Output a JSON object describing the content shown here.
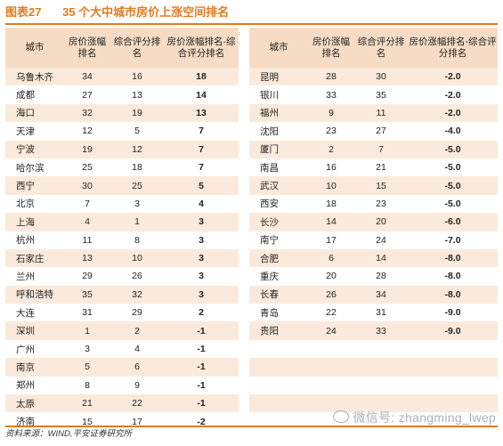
{
  "title": {
    "number": "图表27",
    "text": "35 个大中城市房价上涨空间排名"
  },
  "headers": [
    "城市",
    "房价涨幅排名",
    "综合评分排名",
    "房价涨幅排名-综合评分排名"
  ],
  "left_rows": [
    [
      "乌鲁木齐",
      "34",
      "16",
      "18"
    ],
    [
      "成都",
      "27",
      "13",
      "14"
    ],
    [
      "海口",
      "32",
      "19",
      "13"
    ],
    [
      "天津",
      "12",
      "5",
      "7"
    ],
    [
      "宁波",
      "19",
      "12",
      "7"
    ],
    [
      "哈尔滨",
      "25",
      "18",
      "7"
    ],
    [
      "西宁",
      "30",
      "25",
      "5"
    ],
    [
      "北京",
      "7",
      "3",
      "4"
    ],
    [
      "上海",
      "4",
      "1",
      "3"
    ],
    [
      "杭州",
      "11",
      "8",
      "3"
    ],
    [
      "石家庄",
      "13",
      "10",
      "3"
    ],
    [
      "兰州",
      "29",
      "26",
      "3"
    ],
    [
      "呼和浩特",
      "35",
      "32",
      "3"
    ],
    [
      "大连",
      "31",
      "29",
      "2"
    ],
    [
      "深圳",
      "1",
      "2",
      "-1"
    ],
    [
      "广州",
      "3",
      "4",
      "-1"
    ],
    [
      "南京",
      "5",
      "6",
      "-1"
    ],
    [
      "郑州",
      "8",
      "9",
      "-1"
    ],
    [
      "太原",
      "21",
      "22",
      "-1"
    ],
    [
      "济南",
      "15",
      "17",
      "-2"
    ]
  ],
  "right_rows": [
    [
      "昆明",
      "28",
      "30",
      "-2.0"
    ],
    [
      "银川",
      "33",
      "35",
      "-2.0"
    ],
    [
      "福州",
      "9",
      "11",
      "-2.0"
    ],
    [
      "沈阳",
      "23",
      "27",
      "-4.0"
    ],
    [
      "厦门",
      "2",
      "7",
      "-5.0"
    ],
    [
      "南昌",
      "16",
      "21",
      "-5.0"
    ],
    [
      "武汉",
      "10",
      "15",
      "-5.0"
    ],
    [
      "西安",
      "18",
      "23",
      "-5.0"
    ],
    [
      "长沙",
      "14",
      "20",
      "-6.0"
    ],
    [
      "南宁",
      "17",
      "24",
      "-7.0"
    ],
    [
      "合肥",
      "6",
      "14",
      "-8.0"
    ],
    [
      "重庆",
      "20",
      "28",
      "-8.0"
    ],
    [
      "长春",
      "26",
      "34",
      "-8.0"
    ],
    [
      "青岛",
      "22",
      "31",
      "-9.0"
    ],
    [
      "贵阳",
      "24",
      "33",
      "-9.0"
    ]
  ],
  "footer": "资料来源：WIND,平安证券研究所",
  "watermark": "微信号: zhangming_lwep"
}
